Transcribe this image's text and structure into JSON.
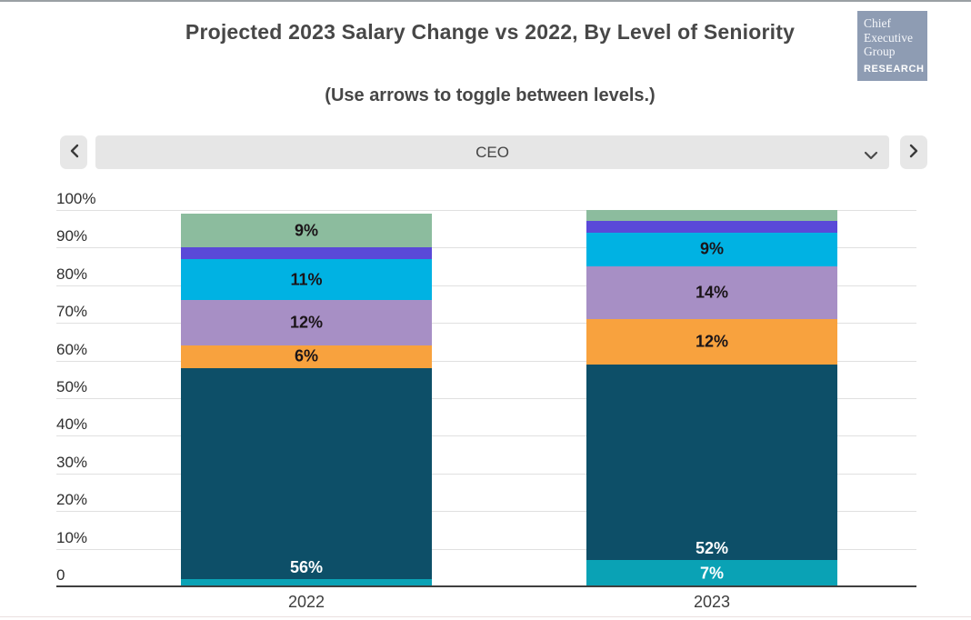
{
  "header": {
    "title": "Projected 2023 Salary Change vs 2022, By Level of Seniority",
    "subtitle": "(Use arrows to toggle between levels.)",
    "logo": {
      "line1": "Chief",
      "line2": "Executive",
      "line3": "Group",
      "tagline": "RESEARCH",
      "bg_color": "#8E9CB3"
    }
  },
  "controls": {
    "prev_icon": "chevron-left-icon",
    "next_icon": "chevron-right-icon",
    "dropdown_icon": "chevron-down-icon",
    "level_selector": {
      "selected": "CEO"
    }
  },
  "chart_data": {
    "type": "bar",
    "subtype": "100-percent-stacked-column",
    "title": "Projected 2023 Salary Change vs 2022, By Level of Seniority",
    "categories": [
      "2022",
      "2023"
    ],
    "xlabel": "",
    "ylabel": "",
    "ylim": [
      0,
      100
    ],
    "yticks": [
      100,
      90,
      80,
      70,
      60,
      50,
      40,
      30,
      20,
      10,
      0
    ],
    "ytick_labels": [
      "100%",
      "90%",
      "80%",
      "70%",
      "60%",
      "50%",
      "40%",
      "30%",
      "20%",
      "10%",
      "0"
    ],
    "grid": "horizontal",
    "legend": "none",
    "series_note": "segments listed bottom-to-top of each column; unlabeled slivers estimated from pixel heights",
    "series": [
      {
        "color_name": "teal",
        "color": "#0AA2B5",
        "values": [
          2,
          7
        ],
        "labels": [
          "",
          "7%"
        ],
        "label_color": "#FFFFFF",
        "label_pos": "center"
      },
      {
        "color_name": "dark-teal",
        "color": "#0D4F68",
        "values": [
          56,
          52
        ],
        "labels": [
          "56%",
          "52%"
        ],
        "label_color": "#FFFFFF",
        "label_pos": "bottom"
      },
      {
        "color_name": "orange",
        "color": "#F8A23E",
        "values": [
          6,
          12
        ],
        "labels": [
          "6%",
          "12%"
        ],
        "label_color": "#1A1418",
        "label_pos": "center"
      },
      {
        "color_name": "light-purple",
        "color": "#A78FC5",
        "values": [
          12,
          14
        ],
        "labels": [
          "12%",
          "14%"
        ],
        "label_color": "#1A1418",
        "label_pos": "center"
      },
      {
        "color_name": "cyan",
        "color": "#00B2E3",
        "values": [
          11,
          9
        ],
        "labels": [
          "11%",
          "9%"
        ],
        "label_color": "#1A1418",
        "label_pos": "center"
      },
      {
        "color_name": "indigo",
        "color": "#5A49D8",
        "values": [
          3,
          3
        ],
        "labels": [
          "",
          ""
        ],
        "label_color": "#1A1418",
        "label_pos": "center"
      },
      {
        "color_name": "green",
        "color": "#8CBC9E",
        "values": [
          9,
          3
        ],
        "labels": [
          "9%",
          ""
        ],
        "label_color": "#1A1418",
        "label_pos": "center"
      }
    ]
  }
}
